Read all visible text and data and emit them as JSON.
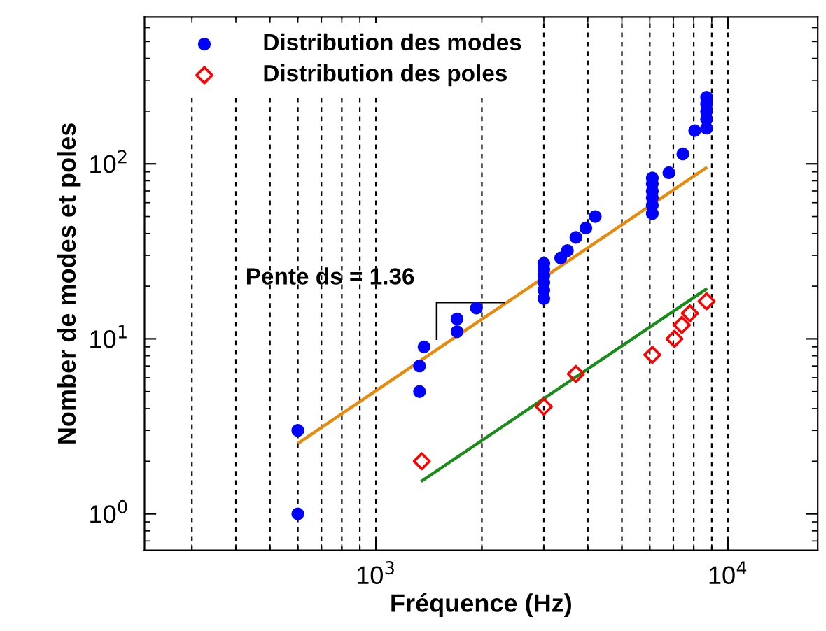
{
  "chart_data": {
    "type": "scatter",
    "xlabel": "Fréquence (Hz)",
    "ylabel": "Nomber de modes et poles",
    "log": "xy",
    "grid": "x",
    "legend": "top left",
    "xlim": [
      220,
      18000
    ],
    "ylim": [
      0.62,
      690
    ],
    "xticks": [
      {
        "value": 1000,
        "label": "10$^{3}$"
      },
      {
        "value": 10000,
        "label": "10$^{4}$"
      }
    ],
    "yticks": [
      {
        "value": 1,
        "label": "10$^{0}$"
      },
      {
        "value": 10,
        "label": "10$^{1}$"
      },
      {
        "value": 100,
        "label": "10$^{2}$"
      }
    ],
    "annotations": [
      "Pente ds = 1.36"
    ],
    "series": [
      {
        "name": "Distribution des modes",
        "marker": "circle",
        "color": "#0000ff",
        "x": [
          600,
          600,
          1330,
          1330,
          1370,
          1700,
          1700,
          1930,
          3000,
          3000,
          3000,
          3000,
          3000,
          3000,
          3350,
          3500,
          3700,
          3950,
          4200,
          6100,
          6100,
          6100,
          6100,
          6100,
          6100,
          6800,
          7450,
          8050,
          8700,
          8700,
          8700,
          8700,
          8700
        ],
        "values": [
          1,
          3,
          5,
          7,
          9,
          11,
          13,
          15,
          17,
          19,
          21,
          23,
          25,
          27,
          29,
          32,
          38,
          43,
          50,
          52,
          58,
          64,
          70,
          77,
          83,
          89,
          114,
          155,
          160,
          180,
          200,
          220,
          240
        ]
      },
      {
        "name": "Distribution des poles",
        "marker": "diamond",
        "color": "#ff0000",
        "x": [
          1350,
          3000,
          3700,
          6100,
          7050,
          7400,
          7800,
          8700
        ],
        "values": [
          2,
          4.1,
          6.3,
          8.1,
          10,
          12,
          14,
          16.4
        ]
      },
      {
        "type": "line",
        "color": "#e88a0c",
        "x": [
          606,
          8660
        ],
        "values": [
          2.56,
          94.6
        ]
      },
      {
        "type": "line",
        "color": "#1a8c1a",
        "x": [
          1355,
          8660
        ],
        "values": [
          1.55,
          19.2
        ]
      }
    ]
  }
}
